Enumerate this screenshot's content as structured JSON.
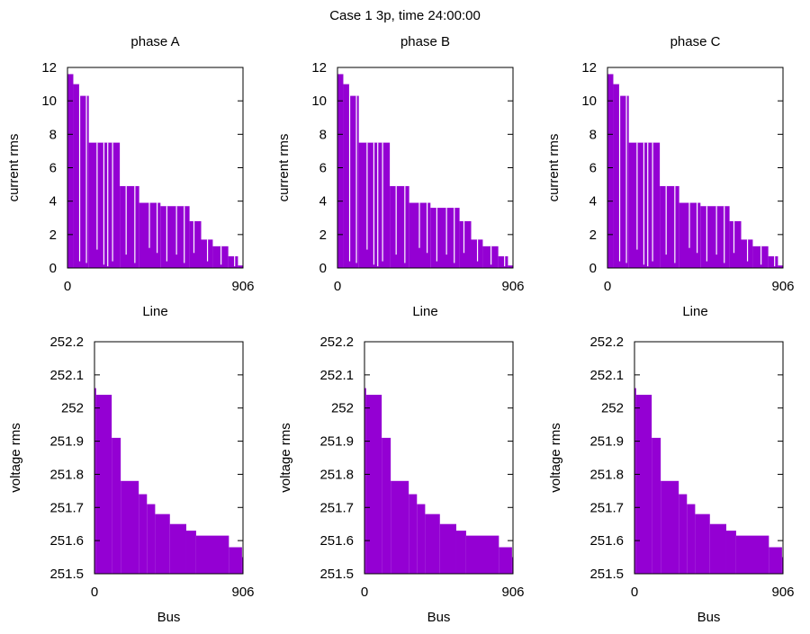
{
  "figure": {
    "title": "Case 1 3p, time 24:00:00",
    "fill_color": "#9400d3"
  },
  "chart_data": [
    {
      "type": "bar",
      "title": "phase A",
      "xlabel": "Line",
      "ylabel": "current rms",
      "xlim": [
        0,
        906
      ],
      "ylim": [
        0,
        12
      ],
      "xticks": [
        0,
        906
      ],
      "yticks": [
        0,
        2,
        4,
        6,
        8,
        10,
        12
      ],
      "grid": false,
      "steps": [
        [
          0,
          11.6
        ],
        [
          30,
          11.0
        ],
        [
          65,
          10.3
        ],
        [
          110,
          7.5
        ],
        [
          270,
          4.9
        ],
        [
          370,
          3.9
        ],
        [
          480,
          3.7
        ],
        [
          630,
          2.8
        ],
        [
          690,
          1.7
        ],
        [
          750,
          1.3
        ],
        [
          830,
          0.7
        ],
        [
          880,
          0.15
        ]
      ],
      "dips": [
        [
          60,
          0.4
        ],
        [
          95,
          0.3
        ],
        [
          150,
          1.1
        ],
        [
          185,
          0.2
        ],
        [
          205,
          0.1
        ],
        [
          230,
          0.4
        ],
        [
          300,
          0.8
        ],
        [
          345,
          0.3
        ],
        [
          420,
          1.2
        ],
        [
          460,
          0.9
        ],
        [
          510,
          0.4
        ],
        [
          560,
          0.8
        ],
        [
          600,
          0.3
        ],
        [
          650,
          0.9
        ],
        [
          720,
          0.4
        ],
        [
          790,
          0.2
        ],
        [
          860,
          0.1
        ]
      ]
    },
    {
      "type": "bar",
      "title": "phase B",
      "xlabel": "Line",
      "ylabel": "current rms",
      "xlim": [
        0,
        906
      ],
      "ylim": [
        0,
        12
      ],
      "xticks": [
        0,
        906
      ],
      "yticks": [
        0,
        2,
        4,
        6,
        8,
        10,
        12
      ],
      "grid": false,
      "steps": [
        [
          0,
          11.6
        ],
        [
          30,
          11.0
        ],
        [
          65,
          10.3
        ],
        [
          110,
          7.5
        ],
        [
          270,
          4.9
        ],
        [
          370,
          3.9
        ],
        [
          480,
          3.6
        ],
        [
          630,
          2.8
        ],
        [
          690,
          1.7
        ],
        [
          750,
          1.3
        ],
        [
          830,
          0.7
        ],
        [
          880,
          0.15
        ]
      ],
      "dips": [
        [
          60,
          0.4
        ],
        [
          95,
          0.3
        ],
        [
          150,
          1.1
        ],
        [
          185,
          0.2
        ],
        [
          205,
          0.1
        ],
        [
          230,
          0.4
        ],
        [
          300,
          0.8
        ],
        [
          345,
          0.3
        ],
        [
          420,
          1.2
        ],
        [
          460,
          0.9
        ],
        [
          510,
          0.4
        ],
        [
          560,
          0.8
        ],
        [
          600,
          0.3
        ],
        [
          650,
          0.9
        ],
        [
          720,
          0.4
        ],
        [
          790,
          0.2
        ],
        [
          860,
          0.1
        ]
      ]
    },
    {
      "type": "bar",
      "title": "phase C",
      "xlabel": "Line",
      "ylabel": "current rms",
      "xlim": [
        0,
        906
      ],
      "ylim": [
        0,
        12
      ],
      "xticks": [
        0,
        906
      ],
      "yticks": [
        0,
        2,
        4,
        6,
        8,
        10,
        12
      ],
      "grid": false,
      "steps": [
        [
          0,
          11.6
        ],
        [
          30,
          11.0
        ],
        [
          65,
          10.3
        ],
        [
          110,
          7.5
        ],
        [
          270,
          4.9
        ],
        [
          370,
          3.9
        ],
        [
          480,
          3.7
        ],
        [
          630,
          2.8
        ],
        [
          690,
          1.7
        ],
        [
          750,
          1.3
        ],
        [
          830,
          0.7
        ],
        [
          880,
          0.15
        ]
      ],
      "dips": [
        [
          60,
          0.4
        ],
        [
          95,
          0.3
        ],
        [
          150,
          1.1
        ],
        [
          185,
          0.2
        ],
        [
          205,
          0.1
        ],
        [
          230,
          0.4
        ],
        [
          300,
          0.8
        ],
        [
          345,
          0.3
        ],
        [
          420,
          1.2
        ],
        [
          460,
          0.9
        ],
        [
          510,
          0.4
        ],
        [
          560,
          0.8
        ],
        [
          600,
          0.3
        ],
        [
          650,
          0.9
        ],
        [
          720,
          0.4
        ],
        [
          790,
          0.2
        ],
        [
          860,
          0.1
        ]
      ]
    },
    {
      "type": "bar",
      "title": "",
      "xlabel": "Bus",
      "ylabel": "voltage rms",
      "xlim": [
        0,
        906
      ],
      "ylim": [
        251.5,
        252.2
      ],
      "xticks": [
        0,
        906
      ],
      "yticks": [
        251.5,
        251.6,
        251.7,
        251.8,
        251.9,
        252,
        252.1,
        252.2
      ],
      "grid": false,
      "steps": [
        [
          0,
          252.06
        ],
        [
          10,
          252.04
        ],
        [
          105,
          251.91
        ],
        [
          160,
          251.78
        ],
        [
          270,
          251.74
        ],
        [
          320,
          251.71
        ],
        [
          370,
          251.68
        ],
        [
          460,
          251.65
        ],
        [
          560,
          251.63
        ],
        [
          620,
          251.615
        ],
        [
          820,
          251.58
        ],
        [
          900,
          251.55
        ]
      ],
      "dips": []
    },
    {
      "type": "bar",
      "title": "",
      "xlabel": "Bus",
      "ylabel": "voltage rms",
      "xlim": [
        0,
        906
      ],
      "ylim": [
        251.5,
        252.2
      ],
      "xticks": [
        0,
        906
      ],
      "yticks": [
        251.5,
        251.6,
        251.7,
        251.8,
        251.9,
        252,
        252.1,
        252.2
      ],
      "grid": false,
      "steps": [
        [
          0,
          252.06
        ],
        [
          10,
          252.04
        ],
        [
          105,
          251.91
        ],
        [
          160,
          251.78
        ],
        [
          270,
          251.74
        ],
        [
          320,
          251.71
        ],
        [
          370,
          251.68
        ],
        [
          460,
          251.65
        ],
        [
          560,
          251.63
        ],
        [
          620,
          251.615
        ],
        [
          820,
          251.58
        ],
        [
          900,
          251.55
        ]
      ],
      "dips": []
    },
    {
      "type": "bar",
      "title": "",
      "xlabel": "Bus",
      "ylabel": "voltage rms",
      "xlim": [
        0,
        906
      ],
      "ylim": [
        251.5,
        252.2
      ],
      "xticks": [
        0,
        906
      ],
      "yticks": [
        251.5,
        251.6,
        251.7,
        251.8,
        251.9,
        252,
        252.1,
        252.2
      ],
      "grid": false,
      "steps": [
        [
          0,
          252.06
        ],
        [
          10,
          252.04
        ],
        [
          105,
          251.91
        ],
        [
          160,
          251.78
        ],
        [
          270,
          251.74
        ],
        [
          320,
          251.71
        ],
        [
          370,
          251.68
        ],
        [
          460,
          251.65
        ],
        [
          560,
          251.63
        ],
        [
          620,
          251.615
        ],
        [
          820,
          251.58
        ],
        [
          900,
          251.55
        ]
      ],
      "dips": []
    }
  ]
}
